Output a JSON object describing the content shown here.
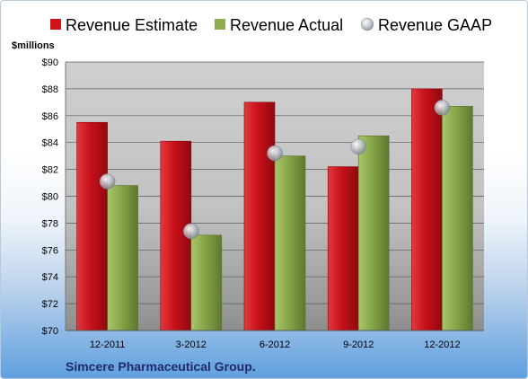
{
  "chart_data": {
    "type": "bar",
    "categories": [
      "12-2011",
      "3-2012",
      "6-2012",
      "9-2012",
      "12-2012"
    ],
    "series": [
      {
        "name": "Revenue Estimate",
        "kind": "bar",
        "color": "#d0121b",
        "values": [
          85.5,
          84.1,
          87.0,
          82.2,
          88.0
        ]
      },
      {
        "name": "Revenue Actual",
        "kind": "bar",
        "color": "#8eac4f",
        "values": [
          80.8,
          77.1,
          83.0,
          84.5,
          86.7
        ]
      },
      {
        "name": "Revenue GAAP",
        "kind": "marker",
        "color": "#c9ced6",
        "values": [
          81.1,
          77.4,
          83.2,
          83.7,
          86.6
        ]
      }
    ],
    "ylabel": "$millions",
    "ylim": [
      70,
      90
    ],
    "yticks": [
      "$70",
      "$72",
      "$74",
      "$76",
      "$78",
      "$80",
      "$82",
      "$84",
      "$86",
      "$88",
      "$90"
    ],
    "ytick_values": [
      70,
      72,
      74,
      76,
      78,
      80,
      82,
      84,
      86,
      88,
      90
    ],
    "grid": true,
    "legend_position": "top",
    "footer": "Simcere Pharmaceutical Group."
  }
}
